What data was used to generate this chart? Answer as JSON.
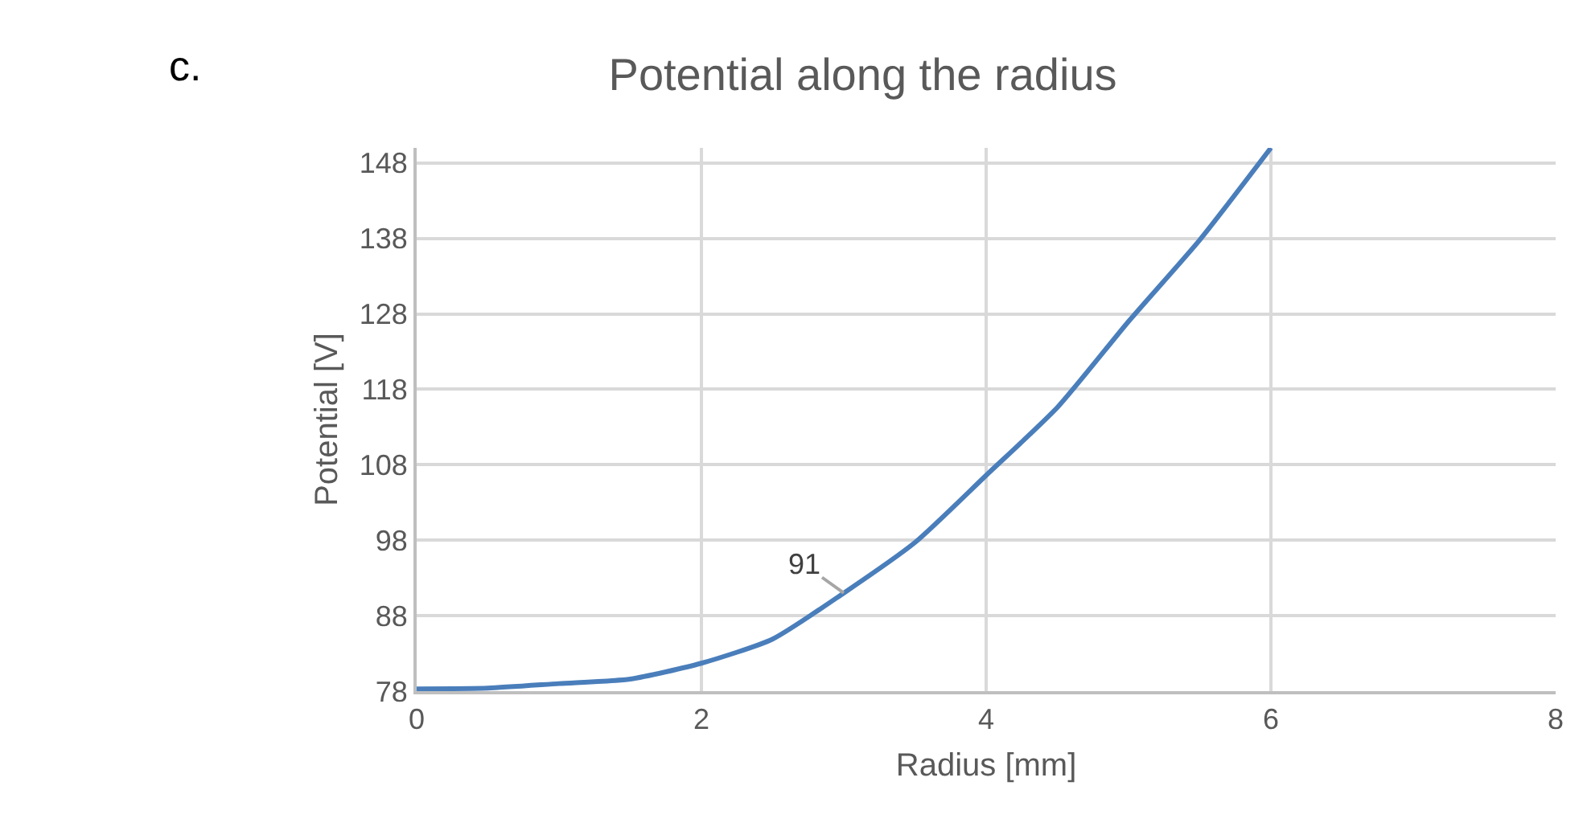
{
  "chart_data": {
    "type": "line",
    "title": "Potential along the radius",
    "xlabel": "Radius [mm]",
    "ylabel": "Potential [V]",
    "annotations": [
      "c.",
      {
        "text": "91",
        "x": 3,
        "y": 91
      }
    ],
    "x": [
      0,
      0.5,
      1,
      1.5,
      2,
      2.5,
      3,
      3.5,
      4,
      4.5,
      5,
      5.5,
      6
    ],
    "series": [
      {
        "color": "#4a7ebb",
        "values": [
          78.3,
          78.4,
          79.0,
          79.6,
          81.7,
          84.9,
          91,
          97.7,
          106.6,
          115.6,
          127.0,
          137.8,
          150
        ]
      }
    ],
    "xlim": [
      0,
      8
    ],
    "xticks": [
      0,
      2,
      4,
      6,
      8
    ],
    "ylim": [
      78,
      150
    ],
    "yticks": [
      78,
      88,
      98,
      108,
      118,
      128,
      138,
      148
    ],
    "grid": true,
    "marker": "none",
    "line_style": "solid"
  }
}
